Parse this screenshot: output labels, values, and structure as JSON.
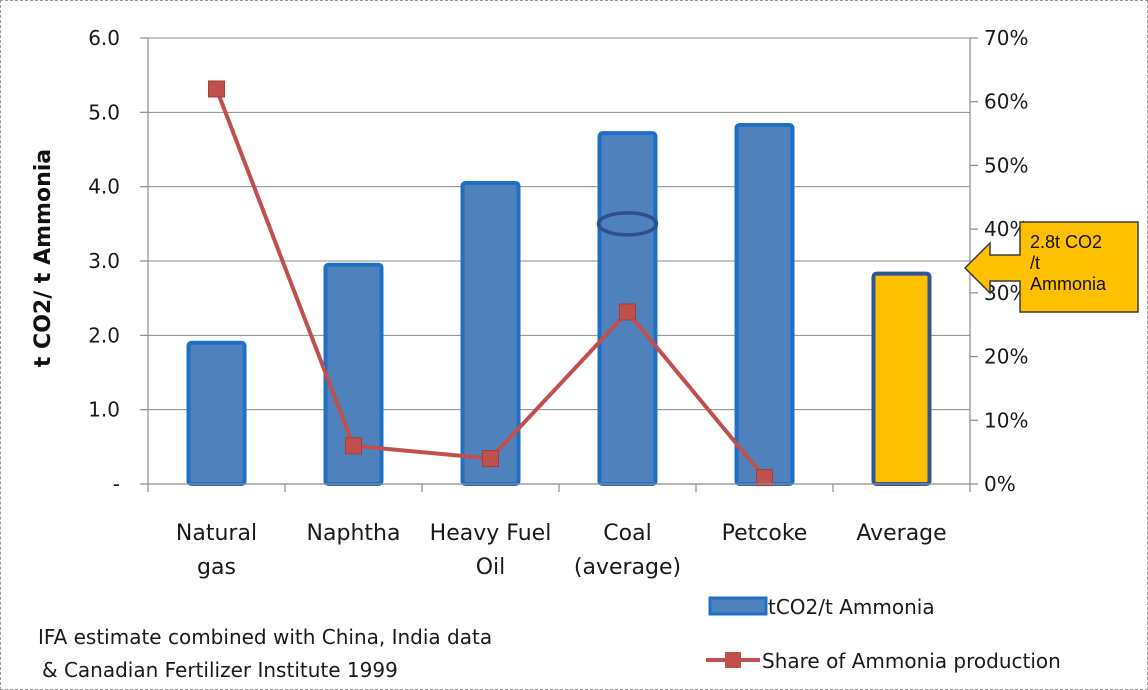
{
  "chart_data": {
    "type": "bar",
    "categories": [
      [
        "Natural",
        "gas"
      ],
      [
        "Naphtha"
      ],
      [
        "Heavy Fuel",
        "Oil"
      ],
      [
        "Coal",
        "(average)"
      ],
      [
        "Petcoke"
      ],
      [
        "Average"
      ]
    ],
    "series": [
      {
        "name": "tCO2/t Ammonia",
        "type": "bar",
        "axis": "left",
        "values": [
          1.9,
          2.95,
          4.05,
          4.72,
          4.83,
          2.83
        ],
        "color": "#4F81BD",
        "highlight_index": 5,
        "highlight_color": "#FFC000"
      },
      {
        "name": "Share of Ammonia production",
        "type": "line",
        "axis": "right",
        "values": [
          62,
          6,
          4,
          27,
          1,
          null
        ],
        "color": "#C0504D"
      }
    ],
    "y_left": {
      "label": "t CO2/ t Ammonia",
      "ylim": [
        0,
        6
      ],
      "ticks": [
        0,
        1,
        2,
        3,
        4,
        5,
        6
      ],
      "tick_labels": [
        "-",
        "1.0",
        "2.0",
        "3.0",
        "4.0",
        "5.0",
        "6.0"
      ]
    },
    "y_right": {
      "ylim": [
        0,
        70
      ],
      "ticks": [
        0,
        10,
        20,
        30,
        40,
        50,
        60,
        70
      ],
      "tick_labels": [
        "0%",
        "10%",
        "20%",
        "30%",
        "40%",
        "50%",
        "60%",
        "70%"
      ]
    },
    "grid": true,
    "legend_position": "bottom-right",
    "callout": {
      "text_lines": [
        "2.8t CO2",
        "/t",
        "Ammonia"
      ],
      "color": "#FFC000"
    },
    "highlight_ellipse": {
      "category_index": 3,
      "y_left": 3.5
    },
    "note_lines": [
      "IFA estimate combined with China, India data",
      "& Canadian Fertilizer Institute 1999"
    ]
  }
}
